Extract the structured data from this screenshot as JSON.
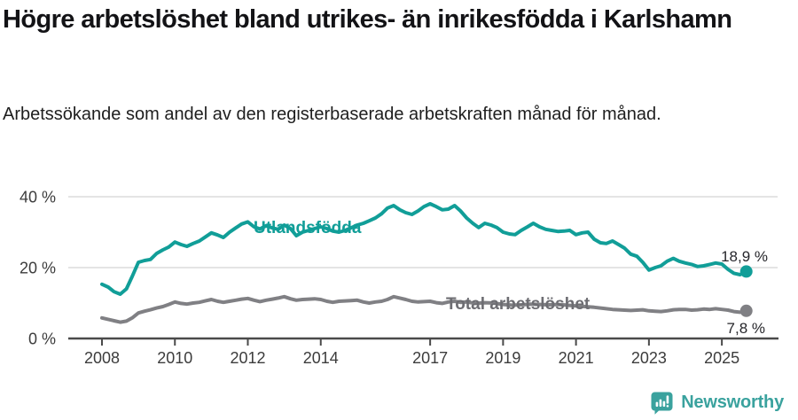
{
  "header": {
    "title": "Högre arbetslöshet bland utrikes- än inrikesfödda i Karlshamn",
    "subtitle": "Arbetssökande som andel av den registerbaserade arbetskraften månad för månad."
  },
  "footer": {
    "brand": "Newsworthy",
    "brand_color": "#3aa29e"
  },
  "chart_data": {
    "type": "line",
    "title": "Högre arbetslöshet bland utrikes- än inrikesfödda i Karlshamn",
    "subtitle": "Arbetssökande som andel av den registerbaserade arbetskraften månad för månad.",
    "xlabel": "",
    "ylabel": "",
    "grid": "horizontal-only",
    "legend_position": "inline-labels",
    "x_range": [
      2008,
      2025.7
    ],
    "y_range": [
      0,
      42
    ],
    "x_ticks": [
      {
        "year": 2008,
        "label": "2008"
      },
      {
        "year": 2010,
        "label": "2010"
      },
      {
        "year": 2012,
        "label": "2012"
      },
      {
        "year": 2014,
        "label": "2014"
      },
      {
        "year": 2017,
        "label": "2017"
      },
      {
        "year": 2019,
        "label": "2019"
      },
      {
        "year": 2021,
        "label": "2021"
      },
      {
        "year": 2023,
        "label": "2023"
      },
      {
        "year": 2025,
        "label": "2025"
      }
    ],
    "y_ticks": [
      {
        "value": 0,
        "label": "0 %"
      },
      {
        "value": 20,
        "label": "20 %"
      },
      {
        "value": 40,
        "label": "40 %"
      }
    ],
    "series": [
      {
        "id": "utlandsfodda",
        "name": "Utlandsfödda",
        "color": "#119e98",
        "label_color": "#119e98",
        "end_label": "18,9 %",
        "end_value": 18.9,
        "points": [
          [
            2008.0,
            15.3
          ],
          [
            2008.17,
            14.5
          ],
          [
            2008.33,
            13.2
          ],
          [
            2008.5,
            12.5
          ],
          [
            2008.67,
            14.0
          ],
          [
            2008.83,
            17.5
          ],
          [
            2009.0,
            21.5
          ],
          [
            2009.17,
            22.0
          ],
          [
            2009.33,
            22.3
          ],
          [
            2009.5,
            24.0
          ],
          [
            2009.67,
            25.0
          ],
          [
            2009.83,
            25.8
          ],
          [
            2010.0,
            27.2
          ],
          [
            2010.17,
            26.5
          ],
          [
            2010.33,
            26.0
          ],
          [
            2010.5,
            26.8
          ],
          [
            2010.67,
            27.5
          ],
          [
            2010.83,
            28.6
          ],
          [
            2011.0,
            29.8
          ],
          [
            2011.17,
            29.2
          ],
          [
            2011.33,
            28.5
          ],
          [
            2011.5,
            30.0
          ],
          [
            2011.67,
            31.2
          ],
          [
            2011.83,
            32.3
          ],
          [
            2012.0,
            32.9
          ],
          [
            2012.17,
            31.5
          ],
          [
            2012.33,
            30.9
          ],
          [
            2012.5,
            31.8
          ],
          [
            2012.67,
            31.2
          ],
          [
            2012.83,
            30.8
          ],
          [
            2013.0,
            32.0
          ],
          [
            2013.17,
            31.0
          ],
          [
            2013.33,
            29.0
          ],
          [
            2013.5,
            30.0
          ],
          [
            2013.67,
            30.5
          ],
          [
            2013.83,
            31.0
          ],
          [
            2014.0,
            31.5
          ],
          [
            2014.17,
            31.0
          ],
          [
            2014.33,
            30.3
          ],
          [
            2014.5,
            30.0
          ],
          [
            2014.67,
            30.5
          ],
          [
            2014.83,
            31.2
          ],
          [
            2015.0,
            32.0
          ],
          [
            2015.17,
            32.5
          ],
          [
            2015.33,
            33.2
          ],
          [
            2015.5,
            34.0
          ],
          [
            2015.67,
            35.2
          ],
          [
            2015.83,
            36.8
          ],
          [
            2016.0,
            37.5
          ],
          [
            2016.17,
            36.3
          ],
          [
            2016.33,
            35.5
          ],
          [
            2016.5,
            35.0
          ],
          [
            2016.67,
            36.0
          ],
          [
            2016.83,
            37.2
          ],
          [
            2017.0,
            38.0
          ],
          [
            2017.17,
            37.2
          ],
          [
            2017.33,
            36.3
          ],
          [
            2017.5,
            36.5
          ],
          [
            2017.67,
            37.5
          ],
          [
            2017.83,
            36.0
          ],
          [
            2018.0,
            34.0
          ],
          [
            2018.17,
            32.5
          ],
          [
            2018.33,
            31.3
          ],
          [
            2018.5,
            32.5
          ],
          [
            2018.67,
            32.0
          ],
          [
            2018.83,
            31.3
          ],
          [
            2019.0,
            30.0
          ],
          [
            2019.17,
            29.5
          ],
          [
            2019.33,
            29.3
          ],
          [
            2019.5,
            30.5
          ],
          [
            2019.67,
            31.5
          ],
          [
            2019.83,
            32.5
          ],
          [
            2020.0,
            31.5
          ],
          [
            2020.17,
            30.8
          ],
          [
            2020.33,
            30.5
          ],
          [
            2020.5,
            30.2
          ],
          [
            2020.67,
            30.3
          ],
          [
            2020.83,
            30.5
          ],
          [
            2021.0,
            29.3
          ],
          [
            2021.17,
            29.8
          ],
          [
            2021.33,
            30.0
          ],
          [
            2021.5,
            28.0
          ],
          [
            2021.67,
            27.0
          ],
          [
            2021.83,
            26.8
          ],
          [
            2022.0,
            27.5
          ],
          [
            2022.17,
            26.5
          ],
          [
            2022.33,
            25.5
          ],
          [
            2022.5,
            23.8
          ],
          [
            2022.67,
            23.2
          ],
          [
            2022.83,
            21.5
          ],
          [
            2023.0,
            19.3
          ],
          [
            2023.17,
            20.0
          ],
          [
            2023.33,
            20.5
          ],
          [
            2023.5,
            21.8
          ],
          [
            2023.67,
            22.6
          ],
          [
            2023.83,
            21.8
          ],
          [
            2024.0,
            21.3
          ],
          [
            2024.17,
            20.9
          ],
          [
            2024.33,
            20.3
          ],
          [
            2024.5,
            20.5
          ],
          [
            2024.67,
            20.9
          ],
          [
            2024.83,
            21.3
          ],
          [
            2025.0,
            21.0
          ],
          [
            2025.17,
            19.5
          ],
          [
            2025.33,
            18.4
          ],
          [
            2025.5,
            18.0
          ],
          [
            2025.67,
            18.9
          ]
        ]
      },
      {
        "id": "total-arbetsloshet",
        "name": "Total arbetslöshet",
        "color": "#808084",
        "label_color": "#6d6d72",
        "end_label": "7,8 %",
        "end_value": 7.8,
        "points": [
          [
            2008.0,
            5.8
          ],
          [
            2008.17,
            5.4
          ],
          [
            2008.33,
            5.0
          ],
          [
            2008.5,
            4.6
          ],
          [
            2008.67,
            4.9
          ],
          [
            2008.83,
            5.8
          ],
          [
            2009.0,
            7.2
          ],
          [
            2009.17,
            7.7
          ],
          [
            2009.33,
            8.1
          ],
          [
            2009.5,
            8.6
          ],
          [
            2009.67,
            9.0
          ],
          [
            2009.83,
            9.6
          ],
          [
            2010.0,
            10.3
          ],
          [
            2010.17,
            9.9
          ],
          [
            2010.33,
            9.7
          ],
          [
            2010.5,
            10.0
          ],
          [
            2010.67,
            10.2
          ],
          [
            2010.83,
            10.6
          ],
          [
            2011.0,
            11.0
          ],
          [
            2011.17,
            10.5
          ],
          [
            2011.33,
            10.2
          ],
          [
            2011.5,
            10.5
          ],
          [
            2011.67,
            10.8
          ],
          [
            2011.83,
            11.1
          ],
          [
            2012.0,
            11.3
          ],
          [
            2012.17,
            10.8
          ],
          [
            2012.33,
            10.4
          ],
          [
            2012.5,
            10.8
          ],
          [
            2012.67,
            11.1
          ],
          [
            2012.83,
            11.4
          ],
          [
            2013.0,
            11.8
          ],
          [
            2013.17,
            11.2
          ],
          [
            2013.33,
            10.8
          ],
          [
            2013.5,
            11.0
          ],
          [
            2013.67,
            11.1
          ],
          [
            2013.83,
            11.2
          ],
          [
            2014.0,
            11.0
          ],
          [
            2014.17,
            10.5
          ],
          [
            2014.33,
            10.2
          ],
          [
            2014.5,
            10.5
          ],
          [
            2014.67,
            10.6
          ],
          [
            2014.83,
            10.7
          ],
          [
            2015.0,
            10.8
          ],
          [
            2015.17,
            10.3
          ],
          [
            2015.33,
            10.0
          ],
          [
            2015.5,
            10.3
          ],
          [
            2015.67,
            10.5
          ],
          [
            2015.83,
            11.0
          ],
          [
            2016.0,
            11.8
          ],
          [
            2016.17,
            11.4
          ],
          [
            2016.33,
            11.0
          ],
          [
            2016.5,
            10.5
          ],
          [
            2016.67,
            10.3
          ],
          [
            2016.83,
            10.4
          ],
          [
            2017.0,
            10.5
          ],
          [
            2017.17,
            10.1
          ],
          [
            2017.33,
            9.9
          ],
          [
            2017.5,
            10.3
          ],
          [
            2017.67,
            10.5
          ],
          [
            2017.83,
            10.2
          ],
          [
            2018.0,
            10.3
          ],
          [
            2018.25,
            9.9
          ],
          [
            2018.5,
            10.1
          ],
          [
            2018.75,
            10.0
          ],
          [
            2019.0,
            9.6
          ],
          [
            2019.25,
            9.4
          ],
          [
            2019.5,
            9.5
          ],
          [
            2019.75,
            9.7
          ],
          [
            2020.0,
            9.6
          ],
          [
            2020.25,
            9.5
          ],
          [
            2020.5,
            9.6
          ],
          [
            2020.75,
            9.4
          ],
          [
            2021.0,
            9.2
          ],
          [
            2021.25,
            9.0
          ],
          [
            2021.5,
            8.8
          ],
          [
            2021.75,
            8.5
          ],
          [
            2022.0,
            8.2
          ],
          [
            2022.17,
            8.1
          ],
          [
            2022.33,
            8.0
          ],
          [
            2022.5,
            7.9
          ],
          [
            2022.67,
            8.0
          ],
          [
            2022.83,
            8.1
          ],
          [
            2023.0,
            7.8
          ],
          [
            2023.17,
            7.7
          ],
          [
            2023.33,
            7.6
          ],
          [
            2023.5,
            7.8
          ],
          [
            2023.67,
            8.1
          ],
          [
            2023.83,
            8.2
          ],
          [
            2024.0,
            8.2
          ],
          [
            2024.17,
            8.0
          ],
          [
            2024.33,
            8.1
          ],
          [
            2024.5,
            8.3
          ],
          [
            2024.67,
            8.2
          ],
          [
            2024.83,
            8.4
          ],
          [
            2025.0,
            8.2
          ],
          [
            2025.17,
            8.0
          ],
          [
            2025.33,
            7.6
          ],
          [
            2025.5,
            7.4
          ],
          [
            2025.67,
            7.8
          ]
        ]
      }
    ]
  }
}
